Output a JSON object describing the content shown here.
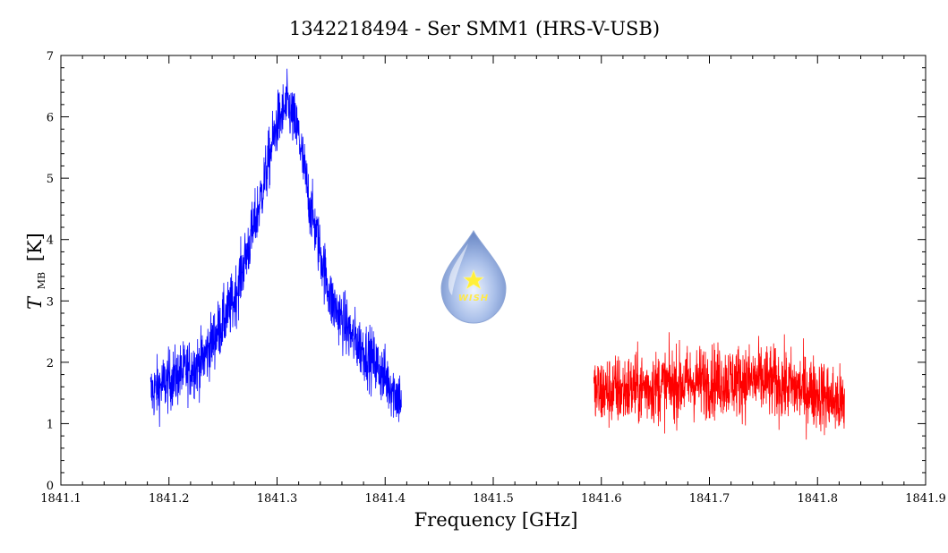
{
  "chart_data": {
    "type": "line",
    "title": "1342218494 - Ser SMM1 (HRS-V-USB)",
    "xlabel": "Frequency [GHz]",
    "ylabel_main": "T",
    "ylabel_sub": "MB",
    "ylabel_unit": "[K]",
    "xlim": [
      1841.1,
      1841.9
    ],
    "ylim": [
      0,
      7
    ],
    "xticks": [
      "1841.1",
      "1841.2",
      "1841.3",
      "1841.4",
      "1841.5",
      "1841.6",
      "1841.7",
      "1841.8",
      "1841.9"
    ],
    "yticks": [
      "0",
      "1",
      "2",
      "3",
      "4",
      "5",
      "6",
      "7"
    ],
    "series": [
      {
        "color": "#0000ff",
        "x_range": [
          1841.183,
          1841.415
        ],
        "profile": {
          "x": [
            1841.183,
            1841.2,
            1841.23,
            1841.26,
            1841.28,
            1841.3,
            1841.31,
            1841.32,
            1841.33,
            1841.35,
            1841.37,
            1841.39,
            1841.41,
            1841.415
          ],
          "y": [
            1.5,
            1.7,
            2.0,
            3.0,
            4.3,
            5.9,
            6.2,
            5.7,
            4.6,
            3.0,
            2.4,
            2.0,
            1.5,
            1.4
          ]
        },
        "noise_rms": 0.25
      },
      {
        "color": "#ff0000",
        "x_range": [
          1841.593,
          1841.825
        ],
        "profile": {
          "x": [
            1841.593,
            1841.65,
            1841.7,
            1841.75,
            1841.8,
            1841.825
          ],
          "y": [
            1.5,
            1.6,
            1.7,
            1.7,
            1.5,
            1.3
          ]
        },
        "noise_rms": 0.3
      }
    ],
    "grid": false,
    "logo": {
      "text": "WISH",
      "colors": {
        "drop": "#9db4e6",
        "star": "#ffef3a",
        "text": "#ffe94a"
      }
    }
  }
}
